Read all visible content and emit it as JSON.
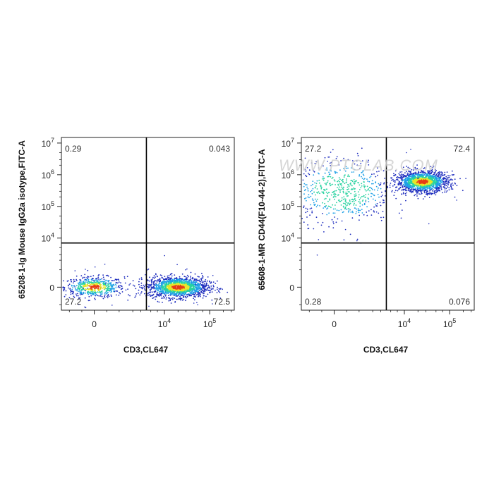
{
  "chart_data": [
    {
      "type": "scatter",
      "id": "left",
      "xlabel": "CD3,CL647",
      "ylabel": "65208-1-Ig Mouse IgG2a isotype,FITC-A",
      "x_scale": "biexponential",
      "y_scale": "biexponential",
      "x_ticks": [
        {
          "value": 0,
          "label": "0"
        },
        {
          "value": 10000,
          "label": "10",
          "exp": "4"
        },
        {
          "value": 100000,
          "label": "10",
          "exp": "5"
        }
      ],
      "y_ticks": [
        {
          "value": 0,
          "label": "0"
        },
        {
          "value": 10000,
          "label": "10",
          "exp": "4"
        },
        {
          "value": 100000,
          "label": "10",
          "exp": "5"
        },
        {
          "value": 1000000,
          "label": "10",
          "exp": "6"
        },
        {
          "value": 10000000,
          "label": "10",
          "exp": "7"
        }
      ],
      "gate": {
        "x": 4000,
        "y": 7000
      },
      "quadrants": [
        {
          "position": "upper-left",
          "value": "0.29"
        },
        {
          "position": "upper-right",
          "value": "0.043"
        },
        {
          "position": "lower-left",
          "value": "27.2"
        },
        {
          "position": "lower-right",
          "value": "72.5"
        }
      ],
      "populations": [
        {
          "x_center": 0,
          "y_center": 0,
          "spread": "moderate",
          "percent": 27.2
        },
        {
          "x_center": 20000,
          "y_center": 0,
          "spread": "moderate",
          "percent": 72.5
        }
      ]
    },
    {
      "type": "scatter",
      "id": "right",
      "xlabel": "CD3,CL647",
      "ylabel": "65608-1-MR CD44(F10-44-2),FITC-A",
      "x_scale": "biexponential",
      "y_scale": "biexponential",
      "x_ticks": [
        {
          "value": 0,
          "label": "0"
        },
        {
          "value": 10000,
          "label": "10",
          "exp": "4"
        },
        {
          "value": 100000,
          "label": "10",
          "exp": "5"
        }
      ],
      "y_ticks": [
        {
          "value": 0,
          "label": "0"
        },
        {
          "value": 10000,
          "label": "10",
          "exp": "4"
        },
        {
          "value": 100000,
          "label": "10",
          "exp": "5"
        },
        {
          "value": 1000000,
          "label": "10",
          "exp": "6"
        },
        {
          "value": 10000000,
          "label": "10",
          "exp": "7"
        }
      ],
      "gate": {
        "x": 4000,
        "y": 7000
      },
      "quadrants": [
        {
          "position": "upper-left",
          "value": "27.2"
        },
        {
          "position": "upper-right",
          "value": "72.4"
        },
        {
          "position": "lower-left",
          "value": "0.28"
        },
        {
          "position": "lower-right",
          "value": "0.076"
        }
      ],
      "populations": [
        {
          "x_center": 300,
          "y_center": 300000,
          "spread": "wide",
          "percent": 27.2
        },
        {
          "x_center": 25000,
          "y_center": 600000,
          "spread": "tight",
          "percent": 72.4
        }
      ]
    }
  ],
  "watermark": "WWW.PTGLAB.COM",
  "colors": {
    "density_low": "#1e2dbe",
    "density_mid_low": "#1ea0e6",
    "density_mid": "#28d2a0",
    "density_mid_high": "#e6e628",
    "density_high": "#e63c14",
    "gate_line": "#000000"
  }
}
